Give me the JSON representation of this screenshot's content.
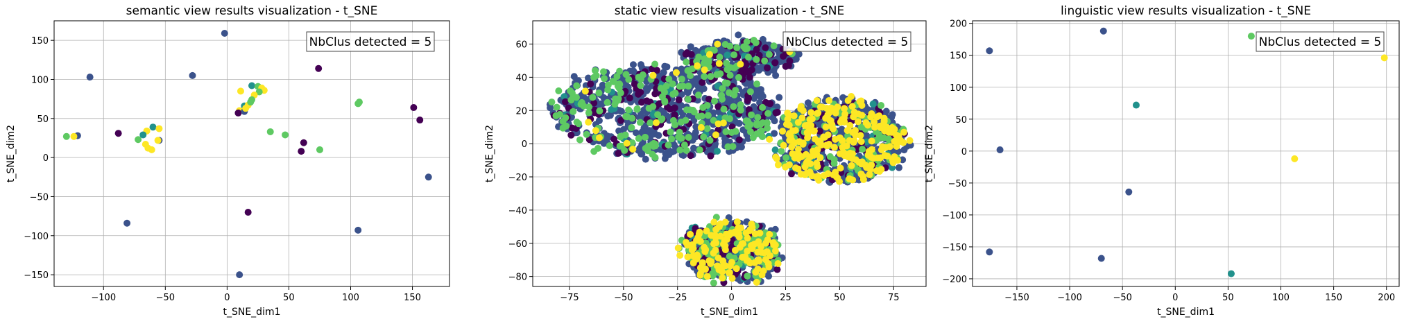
{
  "colors": {
    "class_0": "#440154",
    "class_1": "#3b528b",
    "class_2": "#21918c",
    "class_3": "#5ec962",
    "class_4": "#fde725",
    "grid": "#b0b0b0"
  },
  "chart_data": [
    {
      "type": "scatter",
      "title": "semantic view results visualization - t_SNE",
      "xlabel": "t_SNE_dim1",
      "ylabel": "t_SNE_dim2",
      "xlim": [
        -140,
        180
      ],
      "ylim": [
        -165,
        175
      ],
      "xticks": [
        -100,
        -50,
        0,
        50,
        100,
        150
      ],
      "yticks": [
        -150,
        -100,
        -50,
        0,
        50,
        100,
        150
      ],
      "grid": true,
      "annotation": "NbClus detected = 5",
      "annotation_position": "top-right",
      "points": [
        {
          "x": -2,
          "y": 159,
          "c": 1
        },
        {
          "x": -111,
          "y": 103,
          "c": 1
        },
        {
          "x": -28,
          "y": 105,
          "c": 1
        },
        {
          "x": 74,
          "y": 114,
          "c": 0
        },
        {
          "x": -121,
          "y": 28,
          "c": 1
        },
        {
          "x": -130,
          "y": 27,
          "c": 3
        },
        {
          "x": -124,
          "y": 27,
          "c": 4
        },
        {
          "x": -88,
          "y": 31,
          "c": 0
        },
        {
          "x": -60,
          "y": 39,
          "c": 2
        },
        {
          "x": -65,
          "y": 34,
          "c": 4
        },
        {
          "x": -55,
          "y": 37,
          "c": 4
        },
        {
          "x": -68,
          "y": 29,
          "c": 2
        },
        {
          "x": -72,
          "y": 23,
          "c": 3
        },
        {
          "x": -66,
          "y": 17,
          "c": 4
        },
        {
          "x": -64,
          "y": 12,
          "c": 4
        },
        {
          "x": -61,
          "y": 10,
          "c": 4
        },
        {
          "x": -55,
          "y": 22,
          "c": 1
        },
        {
          "x": -56,
          "y": 22,
          "c": 4
        },
        {
          "x": 11,
          "y": 85,
          "c": 4
        },
        {
          "x": 20,
          "y": 92,
          "c": 2
        },
        {
          "x": 25,
          "y": 91,
          "c": 3
        },
        {
          "x": 28,
          "y": 89,
          "c": 4
        },
        {
          "x": 30,
          "y": 86,
          "c": 4
        },
        {
          "x": 26,
          "y": 84,
          "c": 3
        },
        {
          "x": 22,
          "y": 80,
          "c": 4
        },
        {
          "x": 20,
          "y": 74,
          "c": 3
        },
        {
          "x": 14,
          "y": 66,
          "c": 2
        },
        {
          "x": 17,
          "y": 67,
          "c": 4
        },
        {
          "x": 19,
          "y": 71,
          "c": 3
        },
        {
          "x": 10,
          "y": 60,
          "c": 4
        },
        {
          "x": 9,
          "y": 57,
          "c": 0
        },
        {
          "x": 14,
          "y": 59,
          "c": 1
        },
        {
          "x": 15,
          "y": 63,
          "c": 4
        },
        {
          "x": 35,
          "y": 33,
          "c": 3
        },
        {
          "x": 47,
          "y": 29,
          "c": 3
        },
        {
          "x": 60,
          "y": 8,
          "c": 0
        },
        {
          "x": 62,
          "y": 19,
          "c": 0
        },
        {
          "x": 75,
          "y": 10,
          "c": 3
        },
        {
          "x": 106,
          "y": 69,
          "c": 3
        },
        {
          "x": 107,
          "y": 71,
          "c": 3
        },
        {
          "x": 151,
          "y": 64,
          "c": 0
        },
        {
          "x": 156,
          "y": 48,
          "c": 0
        },
        {
          "x": 163,
          "y": -25,
          "c": 1
        },
        {
          "x": -81,
          "y": -84,
          "c": 1
        },
        {
          "x": 17,
          "y": -70,
          "c": 0
        },
        {
          "x": 106,
          "y": -93,
          "c": 1
        },
        {
          "x": 10,
          "y": -150,
          "c": 1
        }
      ]
    },
    {
      "type": "scatter",
      "title": "static view results visualization - t_SNE",
      "xlabel": "t_SNE_dim1",
      "ylabel": "t_SNE_dim2",
      "xlim": [
        -92,
        90
      ],
      "ylim": [
        -86,
        74
      ],
      "xticks": [
        -75,
        -50,
        -25,
        0,
        25,
        50,
        75
      ],
      "yticks": [
        -80,
        -60,
        -40,
        -20,
        0,
        20,
        40,
        60
      ],
      "grid": true,
      "annotation": "NbClus detected = 5",
      "annotation_position": "top-right",
      "clusters": [
        {
          "name": "upper-left",
          "cx": -30,
          "cy": 20,
          "rx": 52,
          "ry": 28,
          "n": 950,
          "mix": [
            0.12,
            0.62,
            0.04,
            0.2,
            0.02
          ]
        },
        {
          "name": "upper-band",
          "cx": 5,
          "cy": 52,
          "rx": 26,
          "ry": 10,
          "n": 320,
          "mix": [
            0.15,
            0.68,
            0.03,
            0.12,
            0.02
          ]
        },
        {
          "name": "right",
          "cx": 50,
          "cy": 2,
          "rx": 30,
          "ry": 25,
          "n": 850,
          "mix": [
            0.1,
            0.46,
            0.04,
            0.12,
            0.28
          ]
        },
        {
          "name": "bottom",
          "cx": 0,
          "cy": -65,
          "rx": 22,
          "ry": 18,
          "n": 600,
          "mix": [
            0.08,
            0.46,
            0.04,
            0.16,
            0.26
          ]
        }
      ]
    },
    {
      "type": "scatter",
      "title": "linguistic view results visualization - t_SNE",
      "xlabel": "t_SNE_dim1",
      "ylabel": "t_SNE_dim2",
      "xlim": [
        -192,
        212
      ],
      "ylim": [
        -212,
        204
      ],
      "xticks": [
        -150,
        -100,
        -50,
        0,
        50,
        100,
        150,
        200
      ],
      "yticks": [
        -200,
        -150,
        -100,
        -50,
        0,
        50,
        100,
        150,
        200
      ],
      "grid": true,
      "annotation": "NbClus detected = 5",
      "annotation_position": "top-right",
      "points": [
        {
          "x": -176,
          "y": 157,
          "c": 1
        },
        {
          "x": -68,
          "y": 188,
          "c": 1
        },
        {
          "x": -37,
          "y": 72,
          "c": 2
        },
        {
          "x": 72,
          "y": 180,
          "c": 3
        },
        {
          "x": 198,
          "y": 146,
          "c": 4
        },
        {
          "x": -166,
          "y": 2,
          "c": 1
        },
        {
          "x": 113,
          "y": -12,
          "c": 4
        },
        {
          "x": -44,
          "y": -64,
          "c": 1
        },
        {
          "x": -176,
          "y": -158,
          "c": 1
        },
        {
          "x": -70,
          "y": -168,
          "c": 1
        },
        {
          "x": 53,
          "y": -192,
          "c": 2
        }
      ]
    }
  ]
}
